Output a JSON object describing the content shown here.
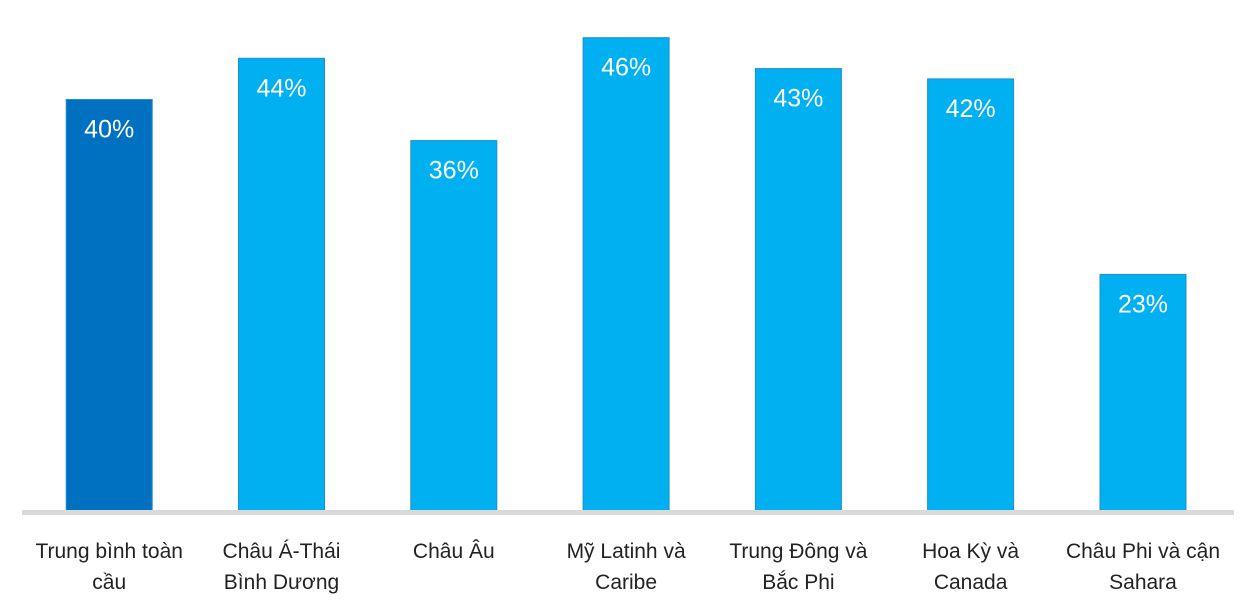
{
  "chart_data": {
    "type": "bar",
    "title": "",
    "xlabel": "",
    "ylabel": "",
    "categories": [
      [
        "Trung bình toàn",
        "cầu"
      ],
      [
        "Châu Á-Thái",
        "Bình Dương"
      ],
      [
        "Châu Âu"
      ],
      [
        "Mỹ Latinh và",
        "Caribe"
      ],
      [
        "Trung Đông và",
        "Bắc Phi"
      ],
      [
        "Hoa Kỳ và",
        "Canada"
      ],
      [
        "Châu Phi và cận",
        "Sahara"
      ]
    ],
    "values": [
      40,
      44,
      36,
      46,
      43,
      42,
      23
    ],
    "value_labels": [
      "40%",
      "44%",
      "36%",
      "46%",
      "43%",
      "42%",
      "23%"
    ],
    "ylim": [
      0,
      48.5
    ],
    "grid": false,
    "legend": "none",
    "colors": {
      "highlight_bar": "#0070C0",
      "bar": "#00B0F0",
      "bar_border": "#1F8FD0",
      "baseline": "#D9D9D9",
      "value_label": "#FFFFFF",
      "category_label": "#222222"
    },
    "highlight_index": 0
  }
}
